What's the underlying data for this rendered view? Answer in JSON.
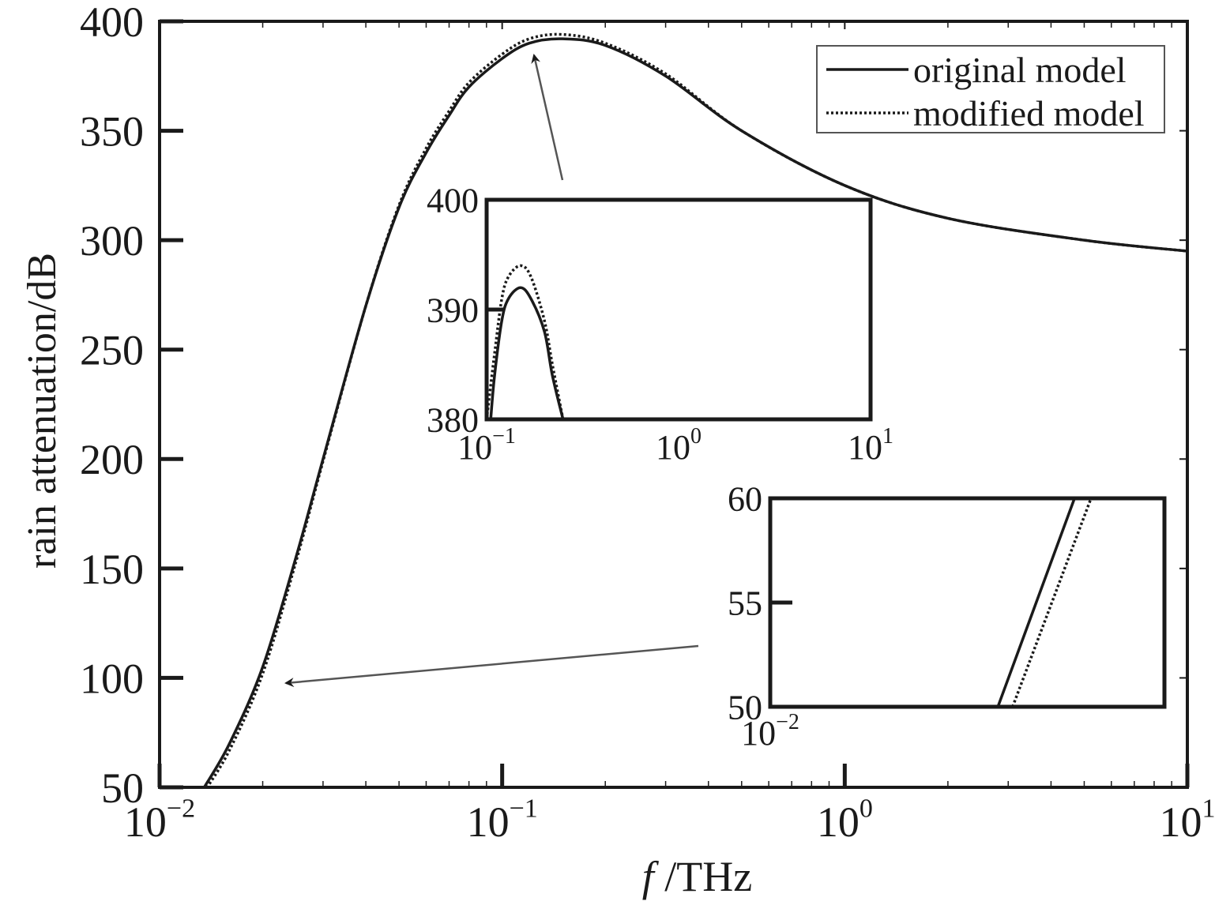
{
  "chart_data": [
    {
      "type": "line",
      "x_scale": "log",
      "xlim": [
        0.01,
        10
      ],
      "ylim": [
        50,
        400
      ],
      "xlabel": "f /THz",
      "xlabel_italic_part": "f",
      "xlabel_rest": " /THz",
      "ylabel": "rain attenuation/dB",
      "xticks": [
        {
          "value": 0.01,
          "base": "10",
          "exp": "−2"
        },
        {
          "value": 0.1,
          "base": "10",
          "exp": "−1"
        },
        {
          "value": 1,
          "base": "10",
          "exp": "0"
        },
        {
          "value": 10,
          "base": "10",
          "exp": "1"
        }
      ],
      "yticks": [
        50,
        100,
        150,
        200,
        250,
        300,
        350,
        400
      ],
      "grid": false,
      "legend_position": "top-right",
      "series": [
        {
          "name": "original model",
          "style": "solid",
          "x": [
            0.0135,
            0.016,
            0.02,
            0.025,
            0.03,
            0.04,
            0.05,
            0.06,
            0.07,
            0.08,
            0.1,
            0.12,
            0.15,
            0.2,
            0.3,
            0.5,
            1,
            2,
            5,
            10
          ],
          "y": [
            50,
            70,
            105,
            155,
            200,
            270,
            315,
            340,
            357,
            370,
            383,
            390,
            392,
            389,
            375,
            350,
            325,
            310,
            300,
            295
          ]
        },
        {
          "name": "modified model",
          "style": "dotted",
          "x": [
            0.0135,
            0.016,
            0.02,
            0.025,
            0.03,
            0.04,
            0.05,
            0.06,
            0.07,
            0.08,
            0.1,
            0.12,
            0.15,
            0.2,
            0.3,
            0.5,
            1,
            2,
            5,
            10
          ],
          "y": [
            48,
            67,
            102,
            153,
            199,
            270,
            316,
            342,
            359,
            372,
            385,
            392,
            394,
            390,
            376,
            350,
            325,
            310,
            300,
            295
          ]
        }
      ],
      "annotations": [
        {
          "type": "arrow",
          "points_to": "peak"
        },
        {
          "type": "arrow",
          "points_to": "low-frequency rise"
        }
      ]
    },
    {
      "type": "line",
      "role": "inset-peak",
      "x_scale": "log",
      "xlim": [
        0.1,
        10
      ],
      "ylim": [
        380,
        400
      ],
      "xticks": [
        {
          "value": 0.1,
          "base": "10",
          "exp": "−1"
        },
        {
          "value": 1,
          "base": "10",
          "exp": "0"
        },
        {
          "value": 10,
          "base": "10",
          "exp": "1"
        }
      ],
      "yticks": [
        380,
        390,
        400
      ],
      "series": [
        {
          "name": "original model",
          "style": "solid",
          "x": [
            0.105,
            0.11,
            0.12,
            0.13,
            0.15,
            0.17,
            0.2,
            0.22,
            0.25
          ],
          "y": [
            380,
            384,
            389,
            391,
            392,
            391,
            388,
            384,
            380
          ]
        },
        {
          "name": "modified model",
          "style": "dotted",
          "x": [
            0.1,
            0.11,
            0.12,
            0.13,
            0.15,
            0.17,
            0.2,
            0.22,
            0.25
          ],
          "y": [
            380,
            386,
            391,
            393,
            394,
            393,
            389,
            385,
            380
          ]
        }
      ]
    },
    {
      "type": "line",
      "role": "inset-low",
      "x_scale": "log",
      "xlim": [
        0.01,
        0.03
      ],
      "ylim": [
        50,
        60
      ],
      "xticks": [
        {
          "value": 0.01,
          "base": "10",
          "exp": "−2"
        }
      ],
      "yticks": [
        50,
        55,
        60
      ],
      "series": [
        {
          "name": "original model",
          "style": "solid",
          "x": [
            0.01886,
            0.02335
          ],
          "y": [
            50,
            60
          ]
        },
        {
          "name": "modified model",
          "style": "dotted",
          "x": [
            0.01965,
            0.02445
          ],
          "y": [
            50,
            60
          ]
        }
      ]
    }
  ]
}
